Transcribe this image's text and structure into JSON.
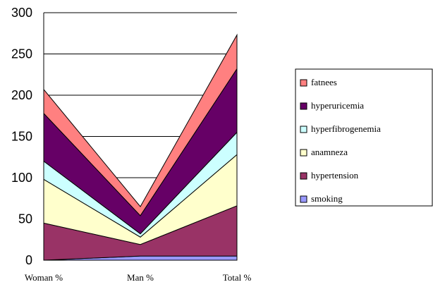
{
  "chart_data": {
    "type": "area",
    "stacked": true,
    "categories": [
      "Woman %",
      "Man %",
      "Total %"
    ],
    "ylim": [
      0,
      300
    ],
    "yticks": [
      0,
      50,
      100,
      150,
      200,
      250,
      300
    ],
    "grid": true,
    "legend_position": "right",
    "series": [
      {
        "name": "smoking",
        "color": "#9999ff",
        "values": [
          0,
          5,
          5
        ]
      },
      {
        "name": "hypertension",
        "color": "#993366",
        "values": [
          45,
          14,
          61
        ]
      },
      {
        "name": "anamneza",
        "color": "#ffffcc",
        "values": [
          53,
          9,
          62
        ]
      },
      {
        "name": "hyperfibrogenemia",
        "color": "#ccffff",
        "values": [
          22,
          4,
          27
        ]
      },
      {
        "name": "hyperuricemia",
        "color": "#660066",
        "values": [
          58,
          22,
          77
        ]
      },
      {
        "name": "fatnees",
        "color": "#ff8080",
        "values": [
          29,
          11,
          41
        ]
      }
    ]
  }
}
